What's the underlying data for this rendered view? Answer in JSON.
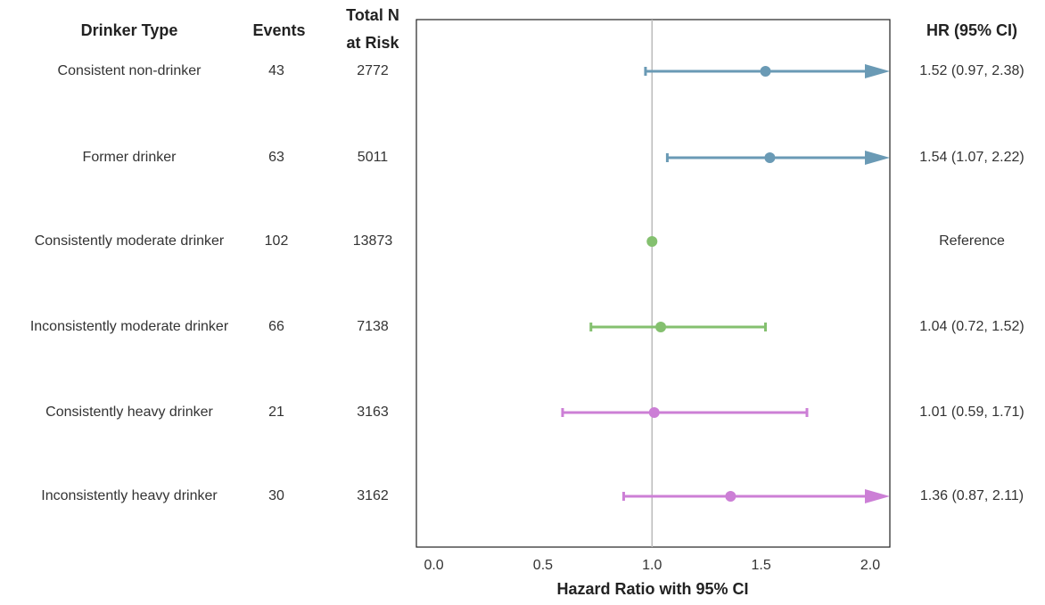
{
  "chart_data": {
    "type": "forest",
    "headers": {
      "label": "Drinker Type",
      "events": "Events",
      "n": [
        "Total N",
        "at Risk"
      ],
      "hr": "HR (95% CI)"
    },
    "categories": [
      "Consistent non-drinker",
      "Former drinker",
      "Consistently moderate drinker",
      "Inconsistently moderate drinker",
      "Consistently heavy drinker",
      "Inconsistently heavy drinker"
    ],
    "events": [
      43,
      63,
      102,
      66,
      21,
      30
    ],
    "n_at_risk": [
      2772,
      5011,
      13873,
      7138,
      3163,
      3162
    ],
    "hr": [
      1.52,
      1.54,
      1.0,
      1.04,
      1.01,
      1.36
    ],
    "lower": [
      0.97,
      1.07,
      null,
      0.72,
      0.59,
      0.87
    ],
    "upper": [
      2.38,
      2.22,
      null,
      1.52,
      1.71,
      2.11
    ],
    "value_labels": [
      "1.52 (0.97, 2.38)",
      "1.54 (1.07, 2.22)",
      "Reference",
      "1.04 (0.72, 1.52)",
      "1.01 (0.59, 1.71)",
      "1.36 (0.87, 2.11)"
    ],
    "colors": [
      "#6a9ab5",
      "#6a9ab5",
      "#84c06f",
      "#84c06f",
      "#cc7fd6",
      "#cc7fd6"
    ],
    "xlim": [
      -0.08,
      2.09
    ],
    "xticks": [
      {
        "value": 0,
        "label": "0.0"
      },
      {
        "value": 0.5,
        "label": "0.5"
      },
      {
        "value": 1,
        "label": "1.0"
      },
      {
        "value": 1.5,
        "label": "1.5"
      },
      {
        "value": 2,
        "label": "2.0"
      }
    ],
    "reference_line": 1,
    "xlabel": "Hazard Ratio with 95% CI"
  }
}
